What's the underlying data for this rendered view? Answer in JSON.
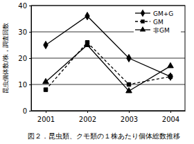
{
  "chart_data": {
    "type": "line",
    "title": "図２．昆虫類、クモ類の１株あたり個体総数推移",
    "y_label": "昆虫個体数/株，調査回数",
    "categories": [
      "2001",
      "2002",
      "2003",
      "2004"
    ],
    "series": [
      {
        "name": "GM+G",
        "color": "#000000",
        "marker": "diamond",
        "line_style": "solid",
        "values": [
          25,
          36,
          20,
          13
        ]
      },
      {
        "name": "GM",
        "color": "#000000",
        "marker": "square",
        "line_style": "dashed",
        "values": [
          8,
          26,
          10,
          13
        ]
      },
      {
        "name": "非GM",
        "color": "#000000",
        "marker": "triangle",
        "line_style": "solid",
        "values": [
          11,
          25,
          7.5,
          17
        ]
      }
    ],
    "ylim": [
      0,
      40
    ],
    "yticks": [
      0,
      10,
      20,
      30,
      40
    ],
    "grid": true,
    "legend": "upper right"
  }
}
